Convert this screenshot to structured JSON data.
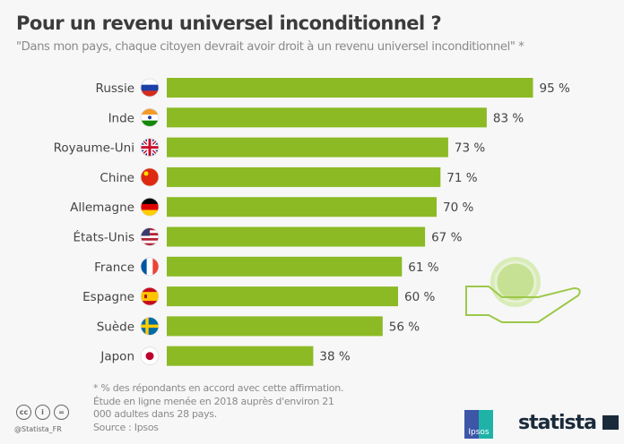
{
  "chart_data": {
    "type": "bar",
    "orientation": "horizontal",
    "title": "Pour un revenu universel inconditionnel ?",
    "subtitle": "\"Dans mon pays, chaque citoyen devrait avoir droit à un revenu universel inconditionnel\" *",
    "categories": [
      "Russie",
      "Inde",
      "Royaume-Uni",
      "Chine",
      "Allemagne",
      "États-Unis",
      "France",
      "Espagne",
      "Suède",
      "Japon"
    ],
    "values": [
      95,
      83,
      73,
      71,
      70,
      67,
      61,
      60,
      56,
      38
    ],
    "value_labels": [
      "95 %",
      "83 %",
      "73 %",
      "71 %",
      "70 %",
      "67 %",
      "61 %",
      "60 %",
      "56 %",
      "38 %"
    ],
    "flags": [
      "russia-flag",
      "india-flag",
      "uk-flag",
      "china-flag",
      "germany-flag",
      "usa-flag",
      "france-flag",
      "spain-flag",
      "sweden-flag",
      "japan-flag"
    ],
    "unit": "%",
    "xlim": [
      0,
      100
    ],
    "grid": false,
    "bar_color": "#8bba25"
  },
  "footer": {
    "note": "* % des répondants en accord avec cette affirmation.",
    "study": "Étude en ligne menée en 2018 auprès d'environ 21 000 adultes dans 28 pays.",
    "source": "Source : Ipsos",
    "handle": "@Statista_FR",
    "ipsos_logo": "Ipsos",
    "statista_logo": "statista"
  }
}
